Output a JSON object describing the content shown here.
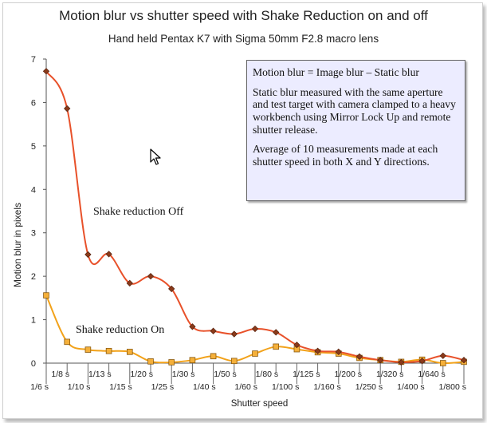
{
  "chart_data": {
    "type": "line",
    "title": "Motion blur vs shutter speed with Shake Reduction on and off",
    "subtitle": "Hand held Pentax K7 with Sigma 50mm F2.8 macro lens",
    "xlabel": "Shutter speed",
    "ylabel": "Motion blur in pixels",
    "ylim": [
      0,
      7
    ],
    "yticks": [
      "0",
      "1",
      "2",
      "3",
      "4",
      "5",
      "6",
      "7"
    ],
    "grid": false,
    "categories": [
      "1/6 s",
      "1/8 s",
      "1/10 s",
      "1/13 s",
      "1/15 s",
      "1/20 s",
      "1/25 s",
      "1/30 s",
      "1/40 s",
      "1/50 s",
      "1/60 s",
      "1/80 s",
      "1/100 s",
      "1/125 s",
      "1/160 s",
      "1/200 s",
      "1/250 s",
      "1/320 s",
      "1/400 s",
      "1/640 s",
      "1/800 s"
    ],
    "series": [
      {
        "name": "Shake reduction Off",
        "color": "#e8512a",
        "marker_color": "#8b3a1a",
        "values": [
          6.72,
          5.86,
          2.5,
          2.51,
          1.84,
          2.0,
          1.71,
          0.84,
          0.74,
          0.67,
          0.79,
          0.71,
          0.42,
          0.28,
          0.26,
          0.15,
          0.07,
          0.02,
          0.05,
          0.17,
          0.07
        ]
      },
      {
        "name": "Shake reduction On",
        "color": "#f2a21a",
        "marker_color": "#f5b03a",
        "values": [
          1.56,
          0.49,
          0.31,
          0.28,
          0.26,
          0.04,
          0.02,
          0.07,
          0.16,
          0.05,
          0.22,
          0.38,
          0.32,
          0.25,
          0.22,
          0.12,
          0.07,
          0.03,
          0.08,
          0.0,
          0.03
        ]
      }
    ]
  },
  "annotation": {
    "line1": "Motion blur = Image blur – Static blur",
    "line2": "Static blur measured with the same aperture and test target with camera clamped to a heavy workbench using Mirror Lock Up and remote shutter release.",
    "line3": "Average of 10 measurements made at each shutter speed in both X and Y directions."
  },
  "labels": {
    "off": "Shake reduction Off",
    "on": "Shake reduction On"
  }
}
